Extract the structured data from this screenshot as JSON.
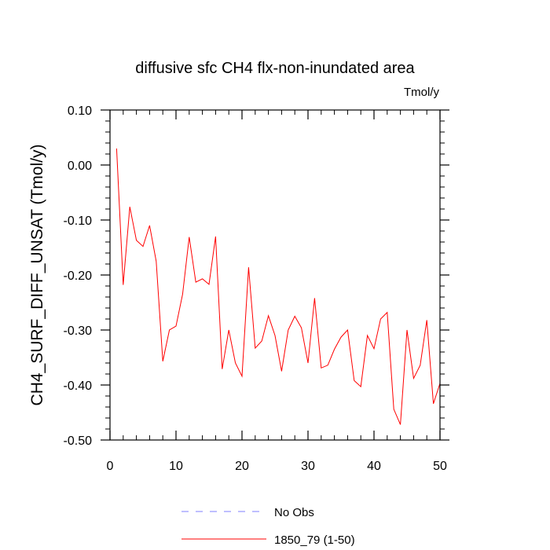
{
  "chart_data": {
    "type": "line",
    "title": "diffusive sfc CH4 flx-non-inundated area",
    "units_label": "Tmol/y",
    "xlabel": "",
    "ylabel": "CH4_SURF_DIFF_UNSAT  (Tmol/y)",
    "xlim": [
      0,
      50
    ],
    "ylim": [
      -0.5,
      0.1
    ],
    "xticks": [
      0,
      10,
      20,
      30,
      40,
      50
    ],
    "xtick_labels": [
      "0",
      "10",
      "20",
      "30",
      "40",
      "50"
    ],
    "yticks": [
      0.1,
      0.0,
      -0.1,
      -0.2,
      -0.3,
      -0.4,
      -0.5
    ],
    "ytick_labels": [
      "0.10",
      "0.00",
      "-0.10",
      "-0.20",
      "-0.30",
      "-0.40",
      "-0.50"
    ],
    "grid": false,
    "legend_position": "bottom-center",
    "series": [
      {
        "name": "No Obs",
        "color": "#7f7fff",
        "dash": "dashed",
        "x": [],
        "values": []
      },
      {
        "name": "1850_79 (1-50)",
        "color": "#ff0000",
        "dash": "solid",
        "x": [
          1,
          2,
          3,
          4,
          5,
          6,
          7,
          8,
          9,
          10,
          11,
          12,
          13,
          14,
          15,
          16,
          17,
          18,
          19,
          20,
          21,
          22,
          23,
          24,
          25,
          26,
          27,
          28,
          29,
          30,
          31,
          32,
          33,
          34,
          35,
          36,
          37,
          38,
          39,
          40,
          41,
          42,
          43,
          44,
          45,
          46,
          47,
          48,
          49,
          50
        ],
        "values": [
          0.03,
          -0.218,
          -0.076,
          -0.137,
          -0.148,
          -0.11,
          -0.175,
          -0.357,
          -0.3,
          -0.293,
          -0.235,
          -0.131,
          -0.213,
          -0.207,
          -0.217,
          -0.13,
          -0.371,
          -0.3,
          -0.36,
          -0.384,
          -0.186,
          -0.333,
          -0.32,
          -0.274,
          -0.31,
          -0.375,
          -0.3,
          -0.275,
          -0.296,
          -0.36,
          -0.242,
          -0.369,
          -0.364,
          -0.335,
          -0.313,
          -0.3,
          -0.392,
          -0.403,
          -0.31,
          -0.334,
          -0.28,
          -0.268,
          -0.444,
          -0.472,
          -0.3,
          -0.388,
          -0.364,
          -0.282,
          -0.434,
          -0.397
        ]
      }
    ]
  }
}
